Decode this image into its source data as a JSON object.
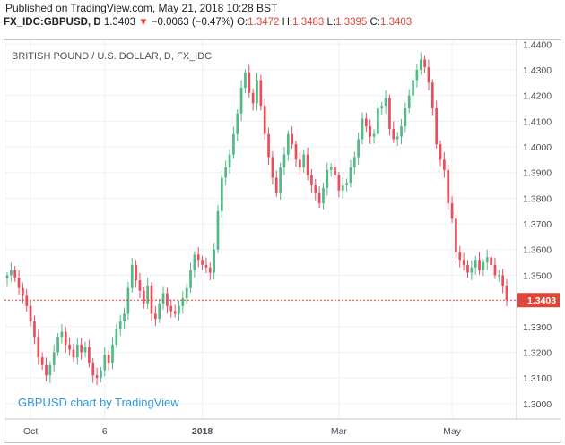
{
  "header": {
    "published": "Published on TradingView.com, May 21, 2018 10:28 BST",
    "symbol": "FX_IDC:GBPUSD, D",
    "last": "1.3403",
    "change_arrow": "▼",
    "change": "−0.0063 (−0.47%)",
    "o_label": "O:",
    "o_value": "1.3472",
    "h_label": "H:",
    "h_value": "1.3483",
    "l_label": "L:",
    "l_value": "1.3395",
    "c_label": "C:",
    "c_value": "1.3403"
  },
  "watermark": "GBPUSD chart by TradingView",
  "colors": {
    "up": "#53b987",
    "down": "#eb4d5c",
    "price_line": "#e0453a",
    "grid": "#eef0f3",
    "axis_text": "#4a4f58",
    "watermark": "#2f9ad6"
  },
  "chart_data": {
    "type": "candlestick",
    "title": "BRITISH POUND / U.S. DOLLAR, D, FX_IDC",
    "ylim": [
      1.294,
      1.4415
    ],
    "y_ticks": [
      "1.3000",
      "1.3100",
      "1.3200",
      "1.3300",
      "1.3400",
      "1.3500",
      "1.3600",
      "1.3700",
      "1.3800",
      "1.3900",
      "1.4000",
      "1.4100",
      "1.4200",
      "1.4300",
      "1.4400"
    ],
    "x_ticks": [
      {
        "label": "Oct",
        "index": 6
      },
      {
        "label": "6",
        "index": 25
      },
      {
        "label": "2018",
        "index": 50
      },
      {
        "label": "Mar",
        "index": 85
      },
      {
        "label": "May",
        "index": 114
      }
    ],
    "last_price": "1.3403",
    "last_value": 1.3403,
    "closes": [
      1.35,
      1.352,
      1.349,
      1.345,
      1.342,
      1.338,
      1.332,
      1.326,
      1.318,
      1.315,
      1.311,
      1.315,
      1.32,
      1.326,
      1.328,
      1.323,
      1.321,
      1.318,
      1.323,
      1.32,
      1.322,
      1.316,
      1.311,
      1.31,
      1.313,
      1.319,
      1.316,
      1.323,
      1.329,
      1.332,
      1.335,
      1.345,
      1.354,
      1.348,
      1.344,
      1.339,
      1.346,
      1.335,
      1.333,
      1.339,
      1.343,
      1.338,
      1.336,
      1.335,
      1.338,
      1.341,
      1.345,
      1.352,
      1.358,
      1.356,
      1.354,
      1.353,
      1.351,
      1.36,
      1.375,
      1.388,
      1.392,
      1.397,
      1.405,
      1.413,
      1.423,
      1.429,
      1.421,
      1.417,
      1.426,
      1.416,
      1.405,
      1.396,
      1.388,
      1.382,
      1.392,
      1.397,
      1.405,
      1.401,
      1.395,
      1.392,
      1.397,
      1.389,
      1.385,
      1.382,
      1.378,
      1.384,
      1.391,
      1.392,
      1.389,
      1.383,
      1.385,
      1.386,
      1.392,
      1.396,
      1.403,
      1.411,
      1.408,
      1.404,
      1.405,
      1.415,
      1.416,
      1.419,
      1.407,
      1.403,
      1.404,
      1.408,
      1.415,
      1.42,
      1.426,
      1.43,
      1.434,
      1.431,
      1.425,
      1.415,
      1.401,
      1.395,
      1.391,
      1.378,
      1.372,
      1.359,
      1.356,
      1.354,
      1.351,
      1.353,
      1.356,
      1.352,
      1.355,
      1.357,
      1.354,
      1.35,
      1.35,
      1.346,
      1.3403
    ]
  }
}
